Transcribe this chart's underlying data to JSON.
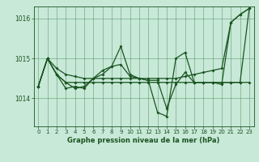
{
  "xlabel": "Graphe pression niveau de la mer (hPa)",
  "background_color": "#c8e8d8",
  "plot_bg_color": "#c8e8d8",
  "grid_color": "#3a8a4a",
  "line_color": "#1a5520",
  "ylim": [
    1013.3,
    1016.3
  ],
  "yticks": [
    1014,
    1015,
    1016
  ],
  "ytick_labels": [
    "1014",
    "1015",
    "1016"
  ],
  "xlim": [
    -0.5,
    23.5
  ],
  "xticks": [
    0,
    1,
    2,
    3,
    4,
    5,
    6,
    7,
    8,
    9,
    10,
    11,
    12,
    13,
    14,
    15,
    16,
    17,
    18,
    19,
    20,
    21,
    22,
    23
  ],
  "series_trend": [
    1014.3,
    1015.0,
    1014.75,
    1014.6,
    1014.55,
    1014.5,
    1014.5,
    1014.5,
    1014.5,
    1014.5,
    1014.5,
    1014.5,
    1014.5,
    1014.5,
    1014.5,
    1014.5,
    1014.55,
    1014.6,
    1014.65,
    1014.7,
    1014.75,
    1015.9,
    1016.1,
    1016.25
  ],
  "series_flat": [
    1014.3,
    1015.0,
    1014.6,
    1014.4,
    1014.4,
    1014.4,
    1014.4,
    1014.4,
    1014.4,
    1014.4,
    1014.4,
    1014.4,
    1014.4,
    1014.4,
    1014.4,
    1014.4,
    1014.4,
    1014.4,
    1014.4,
    1014.4,
    1014.4,
    1014.4,
    1014.4,
    1016.25
  ],
  "series_mid": [
    1014.3,
    1015.0,
    1014.6,
    1014.4,
    1014.25,
    1014.3,
    1014.5,
    1014.6,
    1014.8,
    1014.85,
    1014.55,
    1014.5,
    1014.45,
    1014.45,
    1013.75,
    1014.35,
    1014.65,
    1014.4,
    1014.4,
    1014.4,
    1014.4,
    1014.4,
    1014.4,
    1014.4
  ],
  "series_main": [
    1014.3,
    1015.0,
    1014.6,
    1014.25,
    1014.3,
    1014.25,
    1014.5,
    1014.7,
    1014.8,
    1015.3,
    1014.6,
    1014.5,
    1014.45,
    1013.65,
    1013.55,
    1015.0,
    1015.15,
    1014.4,
    1014.4,
    1014.4,
    1014.35,
    1015.9,
    1016.1,
    1016.25
  ]
}
